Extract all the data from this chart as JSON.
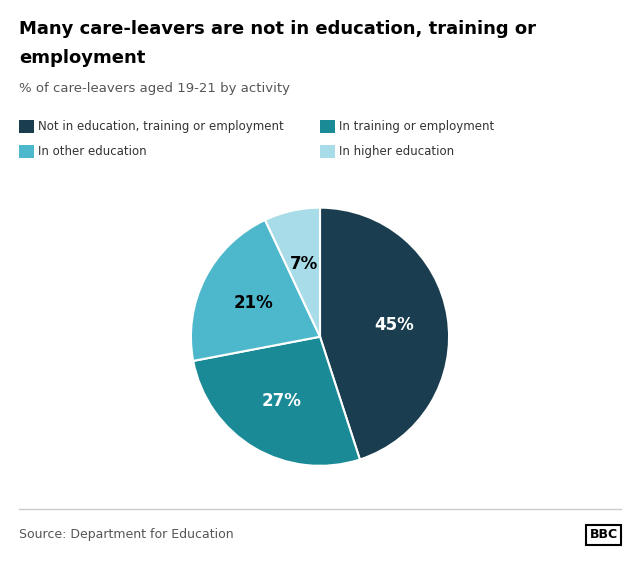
{
  "title_line1": "Many care-leavers are not in education, training or",
  "title_line2": "employment",
  "subtitle": "% of care-leavers aged 19-21 by activity",
  "slices": [
    45,
    27,
    21,
    7
  ],
  "labels": [
    "45%",
    "27%",
    "21%",
    "7%"
  ],
  "colors": [
    "#1a3d4f",
    "#1a8a96",
    "#4db8cc",
    "#a8dce8"
  ],
  "legend_labels": [
    "Not in education, training or employment",
    "In training or employment",
    "In other education",
    "In higher education"
  ],
  "legend_colors": [
    "#1a3d4f",
    "#1a8a96",
    "#4db8cc",
    "#a8dce8"
  ],
  "source": "Source: Department for Education",
  "bbc_label": "BBC",
  "label_colors": [
    "white",
    "white",
    "black",
    "black"
  ],
  "startangle": 90,
  "background_color": "#ffffff"
}
